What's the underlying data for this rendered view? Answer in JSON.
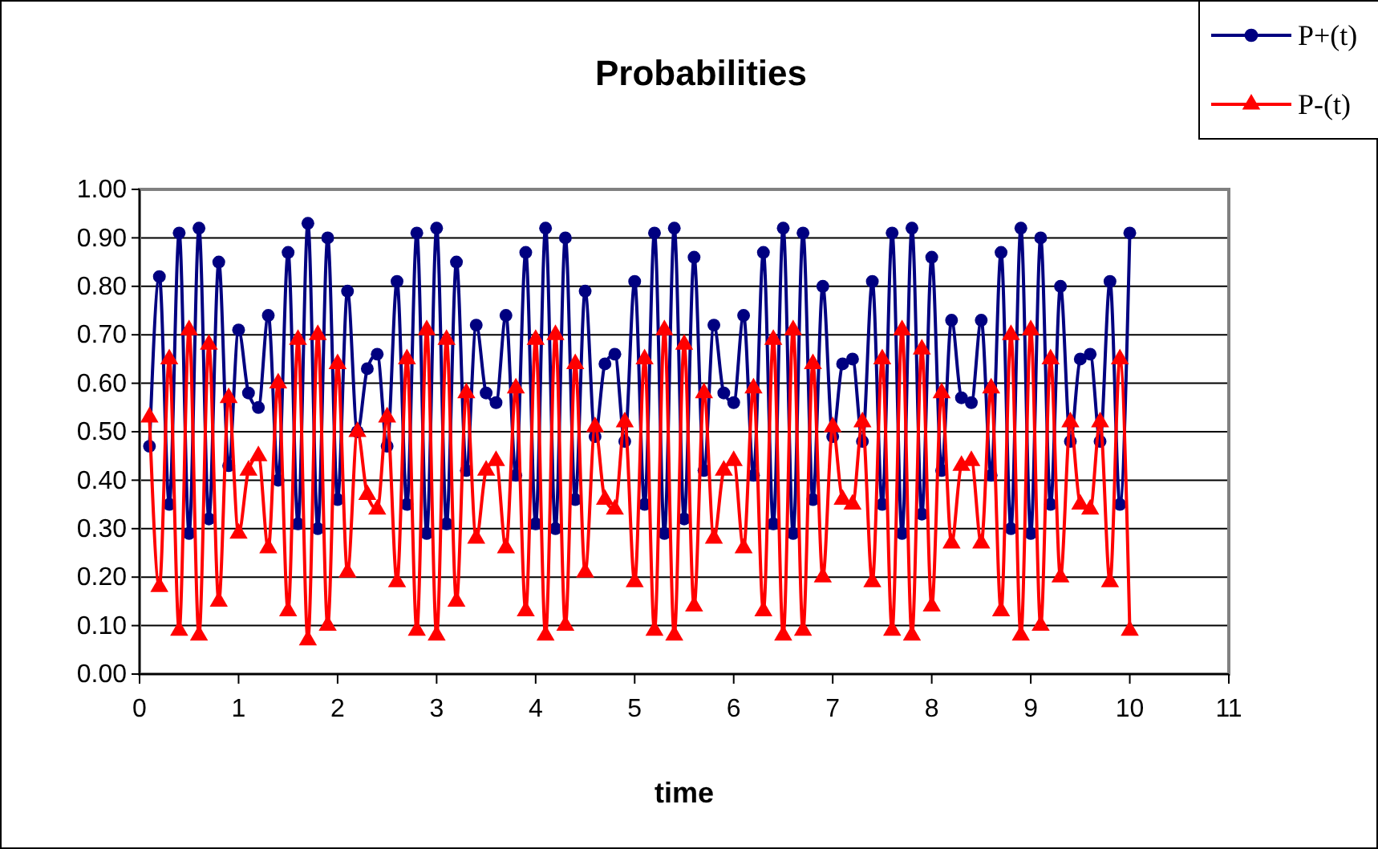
{
  "chart_data": {
    "type": "line",
    "title": "Probabilities",
    "xlabel": "time",
    "x": [
      0.1,
      0.2,
      0.3,
      0.4,
      0.5,
      0.6,
      0.7,
      0.8,
      0.9,
      1.0,
      1.1,
      1.2,
      1.3,
      1.4,
      1.5,
      1.6,
      1.7,
      1.8,
      1.9,
      2.0,
      2.1,
      2.2,
      2.3,
      2.4,
      2.5,
      2.6,
      2.7,
      2.8,
      2.9,
      3.0,
      3.1,
      3.2,
      3.3,
      3.4,
      3.5,
      3.6,
      3.7,
      3.8,
      3.9,
      4.0,
      4.1,
      4.2,
      4.3,
      4.4,
      4.5,
      4.6,
      4.7,
      4.8,
      4.9,
      5.0,
      5.1,
      5.2,
      5.3,
      5.4,
      5.5,
      5.6,
      5.7,
      5.8,
      5.9,
      6.0,
      6.1,
      6.2,
      6.3,
      6.4,
      6.5,
      6.6,
      6.7,
      6.8,
      6.9,
      7.0,
      7.1,
      7.2,
      7.3,
      7.4,
      7.5,
      7.6,
      7.7,
      7.8,
      7.9,
      8.0,
      8.1,
      8.2,
      8.3,
      8.4,
      8.5,
      8.6,
      8.7,
      8.8,
      8.9,
      9.0,
      9.1,
      9.2,
      9.3,
      9.4,
      9.5,
      9.6,
      9.7,
      9.8,
      9.9,
      10.0
    ],
    "series": [
      {
        "name": "P+(t)",
        "color": "#000080",
        "marker": "circle",
        "values": [
          0.47,
          0.82,
          0.35,
          0.91,
          0.29,
          0.92,
          0.32,
          0.85,
          0.43,
          0.71,
          0.58,
          0.55,
          0.74,
          0.4,
          0.87,
          0.31,
          0.93,
          0.3,
          0.9,
          0.36,
          0.79,
          0.5,
          0.63,
          0.66,
          0.47,
          0.81,
          0.35,
          0.91,
          0.29,
          0.92,
          0.31,
          0.85,
          0.42,
          0.72,
          0.58,
          0.56,
          0.74,
          0.41,
          0.87,
          0.31,
          0.92,
          0.3,
          0.9,
          0.36,
          0.79,
          0.49,
          0.64,
          0.66,
          0.48,
          0.81,
          0.35,
          0.91,
          0.29,
          0.92,
          0.32,
          0.86,
          0.42,
          0.72,
          0.58,
          0.56,
          0.74,
          0.41,
          0.87,
          0.31,
          0.92,
          0.29,
          0.91,
          0.36,
          0.8,
          0.49,
          0.64,
          0.65,
          0.48,
          0.81,
          0.35,
          0.91,
          0.29,
          0.92,
          0.33,
          0.86,
          0.42,
          0.73,
          0.57,
          0.56,
          0.73,
          0.41,
          0.87,
          0.3,
          0.92,
          0.29,
          0.9,
          0.35,
          0.8,
          0.48,
          0.65,
          0.66,
          0.48,
          0.81,
          0.35,
          0.91
        ]
      },
      {
        "name": "P-(t)",
        "color": "#ff0000",
        "marker": "triangle",
        "values": [
          0.53,
          0.18,
          0.65,
          0.09,
          0.71,
          0.08,
          0.68,
          0.15,
          0.57,
          0.29,
          0.42,
          0.45,
          0.26,
          0.6,
          0.13,
          0.69,
          0.07,
          0.7,
          0.1,
          0.64,
          0.21,
          0.5,
          0.37,
          0.34,
          0.53,
          0.19,
          0.65,
          0.09,
          0.71,
          0.08,
          0.69,
          0.15,
          0.58,
          0.28,
          0.42,
          0.44,
          0.26,
          0.59,
          0.13,
          0.69,
          0.08,
          0.7,
          0.1,
          0.64,
          0.21,
          0.51,
          0.36,
          0.34,
          0.52,
          0.19,
          0.65,
          0.09,
          0.71,
          0.08,
          0.68,
          0.14,
          0.58,
          0.28,
          0.42,
          0.44,
          0.26,
          0.59,
          0.13,
          0.69,
          0.08,
          0.71,
          0.09,
          0.64,
          0.2,
          0.51,
          0.36,
          0.35,
          0.52,
          0.19,
          0.65,
          0.09,
          0.71,
          0.08,
          0.67,
          0.14,
          0.58,
          0.27,
          0.43,
          0.44,
          0.27,
          0.59,
          0.13,
          0.7,
          0.08,
          0.71,
          0.1,
          0.65,
          0.2,
          0.52,
          0.35,
          0.34,
          0.52,
          0.19,
          0.65,
          0.09
        ]
      }
    ],
    "xlim": [
      0,
      11
    ],
    "xticks": [
      0,
      1,
      2,
      3,
      4,
      5,
      6,
      7,
      8,
      9,
      10,
      11
    ],
    "ylim": [
      0,
      1
    ],
    "yticks": [
      {
        "value": 0,
        "label": "0.00"
      },
      {
        "value": 0.1,
        "label": "0.10"
      },
      {
        "value": 0.2,
        "label": "0.20"
      },
      {
        "value": 0.3,
        "label": "0.30"
      },
      {
        "value": 0.4,
        "label": "0.40"
      },
      {
        "value": 0.5,
        "label": "0.50"
      },
      {
        "value": 0.6,
        "label": "0.60"
      },
      {
        "value": 0.7,
        "label": "0.70"
      },
      {
        "value": 0.8,
        "label": "0.80"
      },
      {
        "value": 0.9,
        "label": "0.90"
      },
      {
        "value": 1,
        "label": "1.00"
      }
    ],
    "grid": "y",
    "legend": "top right",
    "line_style": "solid"
  }
}
